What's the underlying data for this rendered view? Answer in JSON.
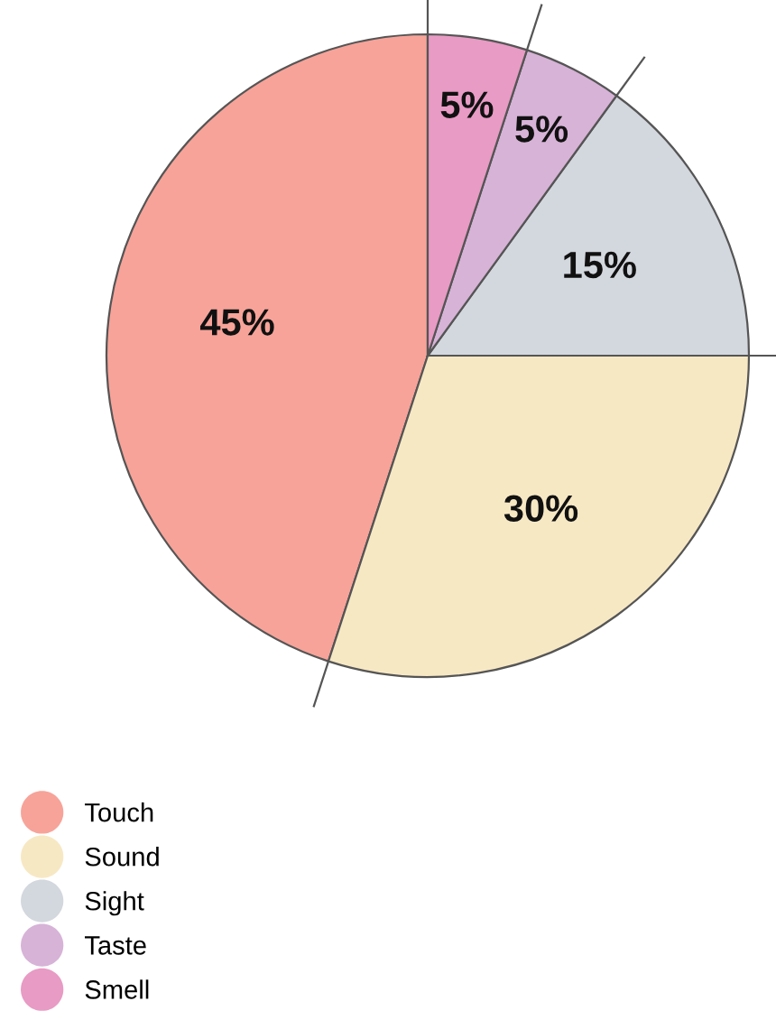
{
  "chart_data": {
    "type": "pie",
    "categories": [
      "Touch",
      "Sound",
      "Sight",
      "Taste",
      "Smell"
    ],
    "values": [
      45,
      30,
      15,
      5,
      5
    ],
    "colors": [
      "#f7a399",
      "#f7e8c4",
      "#d3d7de",
      "#d7b3d7",
      "#e89bc4"
    ],
    "value_labels": [
      "45%",
      "30%",
      "15%",
      "5%",
      "5%"
    ],
    "legend": "bottom left"
  }
}
